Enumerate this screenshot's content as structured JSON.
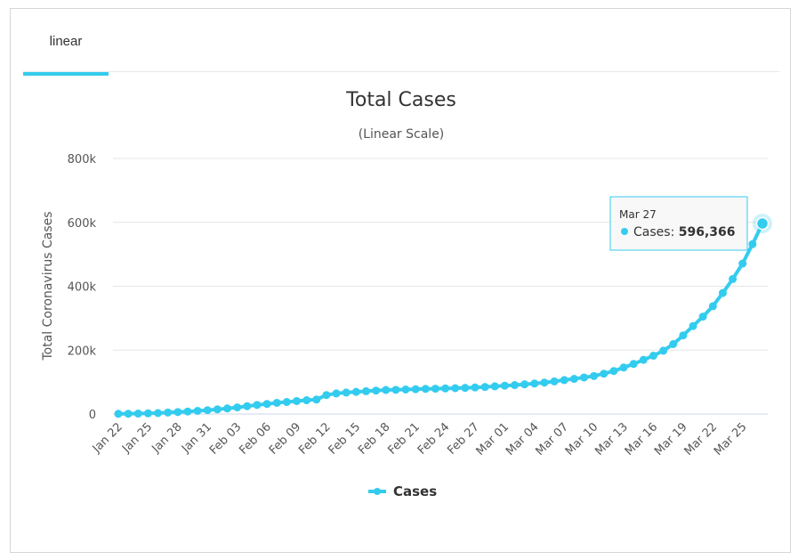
{
  "tabs": [
    {
      "label": "linear"
    }
  ],
  "chart_data": {
    "type": "line",
    "title": "Total Cases",
    "subtitle": "(Linear Scale)",
    "ylabel": "Total Coronavirus Cases",
    "xlabel": "",
    "ylim": [
      0,
      800000
    ],
    "yticks": [
      0,
      200000,
      400000,
      600000,
      800000
    ],
    "ytick_labels": [
      "0",
      "200k",
      "400k",
      "600k",
      "800k"
    ],
    "xtick_labels": [
      "Jan 22",
      "Jan 25",
      "Jan 28",
      "Jan 31",
      "Feb 03",
      "Feb 06",
      "Feb 09",
      "Feb 12",
      "Feb 15",
      "Feb 18",
      "Feb 21",
      "Feb 24",
      "Feb 27",
      "Mar 01",
      "Mar 04",
      "Mar 07",
      "Mar 10",
      "Mar 13",
      "Mar 16",
      "Mar 19",
      "Mar 22",
      "Mar 25"
    ],
    "xtick_every": 3,
    "categories": [
      "Jan 22",
      "Jan 23",
      "Jan 24",
      "Jan 25",
      "Jan 26",
      "Jan 27",
      "Jan 28",
      "Jan 29",
      "Jan 30",
      "Jan 31",
      "Feb 01",
      "Feb 02",
      "Feb 03",
      "Feb 04",
      "Feb 05",
      "Feb 06",
      "Feb 07",
      "Feb 08",
      "Feb 09",
      "Feb 10",
      "Feb 11",
      "Feb 12",
      "Feb 13",
      "Feb 14",
      "Feb 15",
      "Feb 16",
      "Feb 17",
      "Feb 18",
      "Feb 19",
      "Feb 20",
      "Feb 21",
      "Feb 22",
      "Feb 23",
      "Feb 24",
      "Feb 25",
      "Feb 26",
      "Feb 27",
      "Feb 28",
      "Feb 29",
      "Mar 01",
      "Mar 02",
      "Mar 03",
      "Mar 04",
      "Mar 05",
      "Mar 06",
      "Mar 07",
      "Mar 08",
      "Mar 09",
      "Mar 10",
      "Mar 11",
      "Mar 12",
      "Mar 13",
      "Mar 14",
      "Mar 15",
      "Mar 16",
      "Mar 17",
      "Mar 18",
      "Mar 19",
      "Mar 20",
      "Mar 21",
      "Mar 22",
      "Mar 23",
      "Mar 24",
      "Mar 25",
      "Mar 26",
      "Mar 27"
    ],
    "series": [
      {
        "name": "Cases",
        "color": "#33ccee",
        "values": [
          580,
          845,
          1317,
          2015,
          2800,
          4581,
          6058,
          7813,
          9823,
          11950,
          14553,
          17391,
          20630,
          24545,
          28266,
          31439,
          34876,
          37552,
          40553,
          43099,
          45134,
          59287,
          64438,
          67100,
          69197,
          71329,
          73332,
          75184,
          75700,
          76677,
          77673,
          78651,
          79205,
          80087,
          80828,
          81820,
          83112,
          84615,
          86604,
          88585,
          90443,
          93016,
          95314,
          98425,
          102050,
          106099,
          109991,
          114381,
          118948,
          126214,
          134576,
          145483,
          156653,
          169593,
          182490,
          198238,
          218822,
          246017,
          275427,
          305036,
          337489,
          378830,
          422574,
          471035,
          531865,
          596366
        ]
      }
    ],
    "tooltip": {
      "date": "Mar 27",
      "series": "Cases",
      "value": "596,366"
    },
    "legend": {
      "label": "Cases",
      "placement": "bottom-center"
    }
  }
}
